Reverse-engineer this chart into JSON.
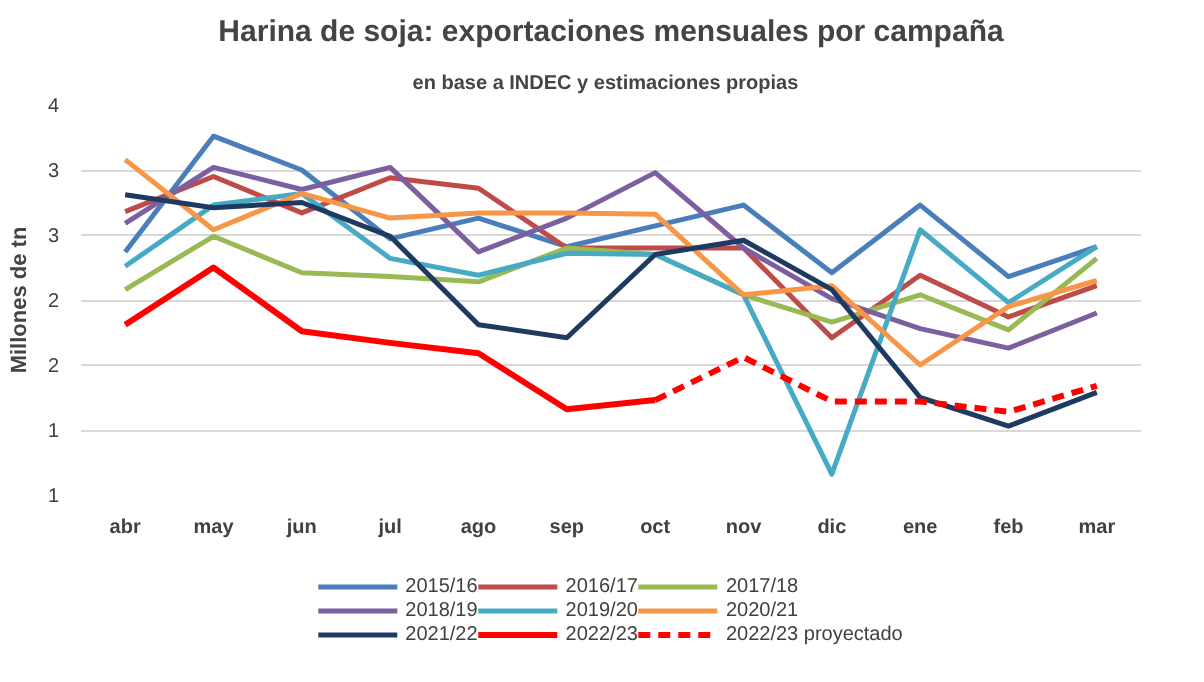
{
  "chart_data": {
    "type": "line",
    "title": "Harina de soja: exportaciones mensuales por campaña",
    "subtitle": "en base a INDEC  y estimaciones  propias",
    "ylabel": "Millones de tn",
    "categories": [
      "abr",
      "may",
      "jun",
      "jul",
      "ago",
      "sep",
      "oct",
      "nov",
      "dic",
      "ene",
      "feb",
      "mar"
    ],
    "ylim": [
      1,
      4
    ],
    "yticks": [
      1,
      {
        "value": 1.5,
        "label": "1"
      },
      2,
      {
        "value": 2.5,
        "label": "2"
      },
      3,
      {
        "value": 3.5,
        "label": "3"
      },
      4
    ],
    "grid": "y",
    "legend": "bottom",
    "series": [
      {
        "name": "2015/16",
        "color": "#4a7ebb",
        "values": [
          2.87,
          3.76,
          3.5,
          2.97,
          3.13,
          2.91,
          3.07,
          3.23,
          2.71,
          3.23,
          2.68,
          2.91
        ]
      },
      {
        "name": "2016/17",
        "color": "#be4b48",
        "values": [
          3.18,
          3.45,
          3.17,
          3.44,
          3.36,
          2.9,
          2.9,
          2.9,
          2.21,
          2.69,
          2.37,
          2.61
        ]
      },
      {
        "name": "2017/18",
        "color": "#98b954",
        "values": [
          2.58,
          2.99,
          2.71,
          2.68,
          2.64,
          2.9,
          2.85,
          2.54,
          2.33,
          2.54,
          2.27,
          2.82
        ]
      },
      {
        "name": "2018/19",
        "color": "#7d5fa0",
        "values": [
          3.09,
          3.52,
          3.35,
          3.52,
          2.87,
          3.13,
          3.48,
          2.9,
          2.51,
          2.28,
          2.13,
          2.4
        ]
      },
      {
        "name": "2019/20",
        "color": "#46aac5",
        "values": [
          2.76,
          3.23,
          3.32,
          2.82,
          2.69,
          2.86,
          2.85,
          2.54,
          1.16,
          3.04,
          2.48,
          2.91
        ]
      },
      {
        "name": "2020/21",
        "color": "#f79646",
        "values": [
          3.58,
          3.04,
          3.32,
          3.13,
          3.17,
          3.17,
          3.16,
          2.54,
          2.61,
          2.0,
          2.45,
          2.65
        ]
      },
      {
        "name": "2021/22",
        "color": "#1f3a60",
        "values": [
          3.31,
          3.21,
          3.25,
          2.99,
          2.31,
          2.21,
          2.85,
          2.96,
          2.58,
          1.75,
          1.53,
          1.79
        ]
      },
      {
        "name": "2022/23",
        "color": "#ff0000",
        "values": [
          2.31,
          2.75,
          2.26,
          2.17,
          2.09,
          1.66,
          1.73,
          null,
          null,
          null,
          null,
          null
        ]
      },
      {
        "name": "2022/23 proyectado",
        "color": "#ff0000",
        "line_style": "dashed",
        "values": [
          null,
          null,
          null,
          null,
          null,
          null,
          1.73,
          2.06,
          1.72,
          1.72,
          1.64,
          1.84
        ]
      }
    ]
  }
}
